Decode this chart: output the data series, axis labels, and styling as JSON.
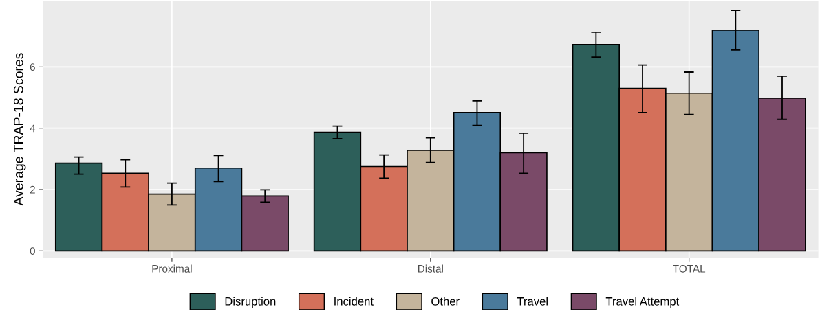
{
  "chart_data": {
    "type": "bar",
    "ylabel": "Average TRAP-18 Scores",
    "categories": [
      "Proximal",
      "Distal",
      "TOTAL"
    ],
    "series": [
      {
        "name": "Disruption",
        "color": "#2d5f5a",
        "values": [
          2.86,
          3.87,
          6.73
        ],
        "errors": [
          [
            2.5,
            3.06
          ],
          [
            3.66,
            4.07
          ],
          [
            6.32,
            7.13
          ]
        ]
      },
      {
        "name": "Incident",
        "color": "#d4705a",
        "values": [
          2.53,
          2.75,
          5.3
        ],
        "errors": [
          [
            2.08,
            2.97
          ],
          [
            2.37,
            3.13
          ],
          [
            4.51,
            6.06
          ]
        ]
      },
      {
        "name": "Other",
        "color": "#c4b49c",
        "values": [
          1.85,
          3.28,
          5.14
        ],
        "errors": [
          [
            1.5,
            2.21
          ],
          [
            2.88,
            3.69
          ],
          [
            4.45,
            5.83
          ]
        ]
      },
      {
        "name": "Travel",
        "color": "#4a7a9b",
        "values": [
          2.7,
          4.51,
          7.2
        ],
        "errors": [
          [
            2.26,
            3.11
          ],
          [
            4.09,
            4.89
          ],
          [
            6.55,
            7.84
          ]
        ]
      },
      {
        "name": "Travel Attempt",
        "color": "#7a4a68",
        "values": [
          1.79,
          3.2,
          4.98
        ],
        "errors": [
          [
            1.59,
            1.99
          ],
          [
            2.53,
            3.84
          ],
          [
            4.29,
            5.7
          ]
        ]
      }
    ],
    "ylim": [
      -0.22,
      8.16
    ],
    "yticks": [
      0,
      2,
      4,
      6
    ],
    "grid": true,
    "legend": "bottom"
  }
}
